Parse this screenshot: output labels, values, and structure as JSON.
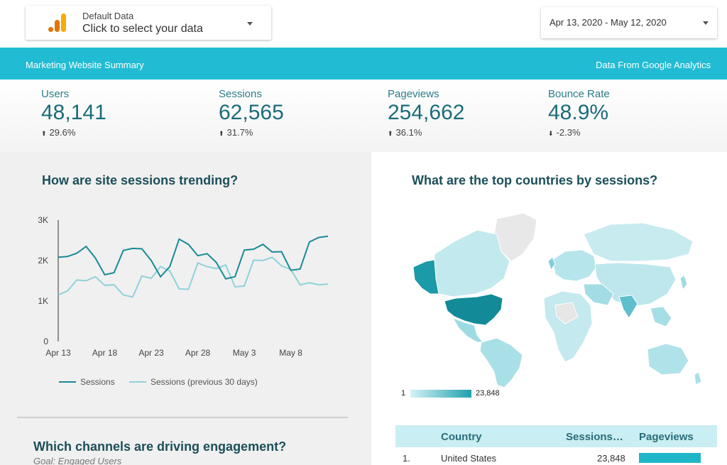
{
  "data_selector": {
    "small_label": "Default Data",
    "main_label": "Click to select your data",
    "icon": "analytics-logo-icon"
  },
  "date_range": {
    "label": "Apr 13, 2020 - May 12, 2020"
  },
  "banner": {
    "left": "Marketing Website Summary",
    "right": "Data From Google Analytics",
    "color": "#21bcd3"
  },
  "kpis": [
    {
      "label": "Users",
      "value": "48,141",
      "delta": "29.6%",
      "direction": "up"
    },
    {
      "label": "Sessions",
      "value": "62,565",
      "delta": "31.7%",
      "direction": "up"
    },
    {
      "label": "Pageviews",
      "value": "254,662",
      "delta": "36.1%",
      "direction": "up"
    },
    {
      "label": "Bounce Rate",
      "value": "48.9%",
      "delta": "-2.3%",
      "direction": "down"
    }
  ],
  "sessions_chart": {
    "title": "How are site sessions trending?",
    "chart_data": {
      "type": "line",
      "x": [
        "Apr 13",
        "Apr 14",
        "Apr 15",
        "Apr 16",
        "Apr 17",
        "Apr 18",
        "Apr 19",
        "Apr 20",
        "Apr 21",
        "Apr 22",
        "Apr 23",
        "Apr 24",
        "Apr 25",
        "Apr 26",
        "Apr 27",
        "Apr 28",
        "Apr 29",
        "Apr 30",
        "May 1",
        "May 2",
        "May 3",
        "May 4",
        "May 5",
        "May 6",
        "May 7",
        "May 8",
        "May 9",
        "May 10",
        "May 11",
        "May 12"
      ],
      "x_tick_labels": [
        "Apr 13",
        "Apr 18",
        "Apr 23",
        "Apr 28",
        "May 3",
        "May 8"
      ],
      "y_tick_labels": [
        "0",
        "1K",
        "2K",
        "3K"
      ],
      "ylim": [
        0,
        3000
      ],
      "series": [
        {
          "name": "Sessions",
          "color": "#1a8a96",
          "values": [
            2080,
            2100,
            2180,
            2350,
            2060,
            1650,
            1700,
            2250,
            2300,
            2290,
            2000,
            1600,
            1850,
            2530,
            2400,
            2120,
            2170,
            1950,
            1550,
            1600,
            2260,
            2280,
            2400,
            2210,
            2220,
            1760,
            1790,
            2460,
            2570,
            2600
          ]
        },
        {
          "name": "Sessions (previous 30 days)",
          "color": "#8fd2da",
          "values": [
            1150,
            1250,
            1520,
            1500,
            1600,
            1390,
            1400,
            1150,
            1100,
            1620,
            1560,
            1850,
            1740,
            1300,
            1290,
            1940,
            1850,
            1800,
            1890,
            1350,
            1370,
            2010,
            2000,
            2080,
            1870,
            1780,
            1400,
            1450,
            1400,
            1420
          ]
        }
      ]
    }
  },
  "map_panel": {
    "title": "What are the top countries by sessions?",
    "scale_min": "1",
    "scale_max": "23,848"
  },
  "channels": {
    "title": "Which channels are driving engagement?",
    "subtitle": "Goal: Engaged Users"
  },
  "country_table": {
    "headers": {
      "country": "Country",
      "sessions": "Sessions…",
      "pageviews": "Pageviews"
    },
    "rows": [
      {
        "rank": "1.",
        "country": "United States",
        "sessions": "23,848",
        "pageviews_fraction": 1.0
      }
    ]
  }
}
